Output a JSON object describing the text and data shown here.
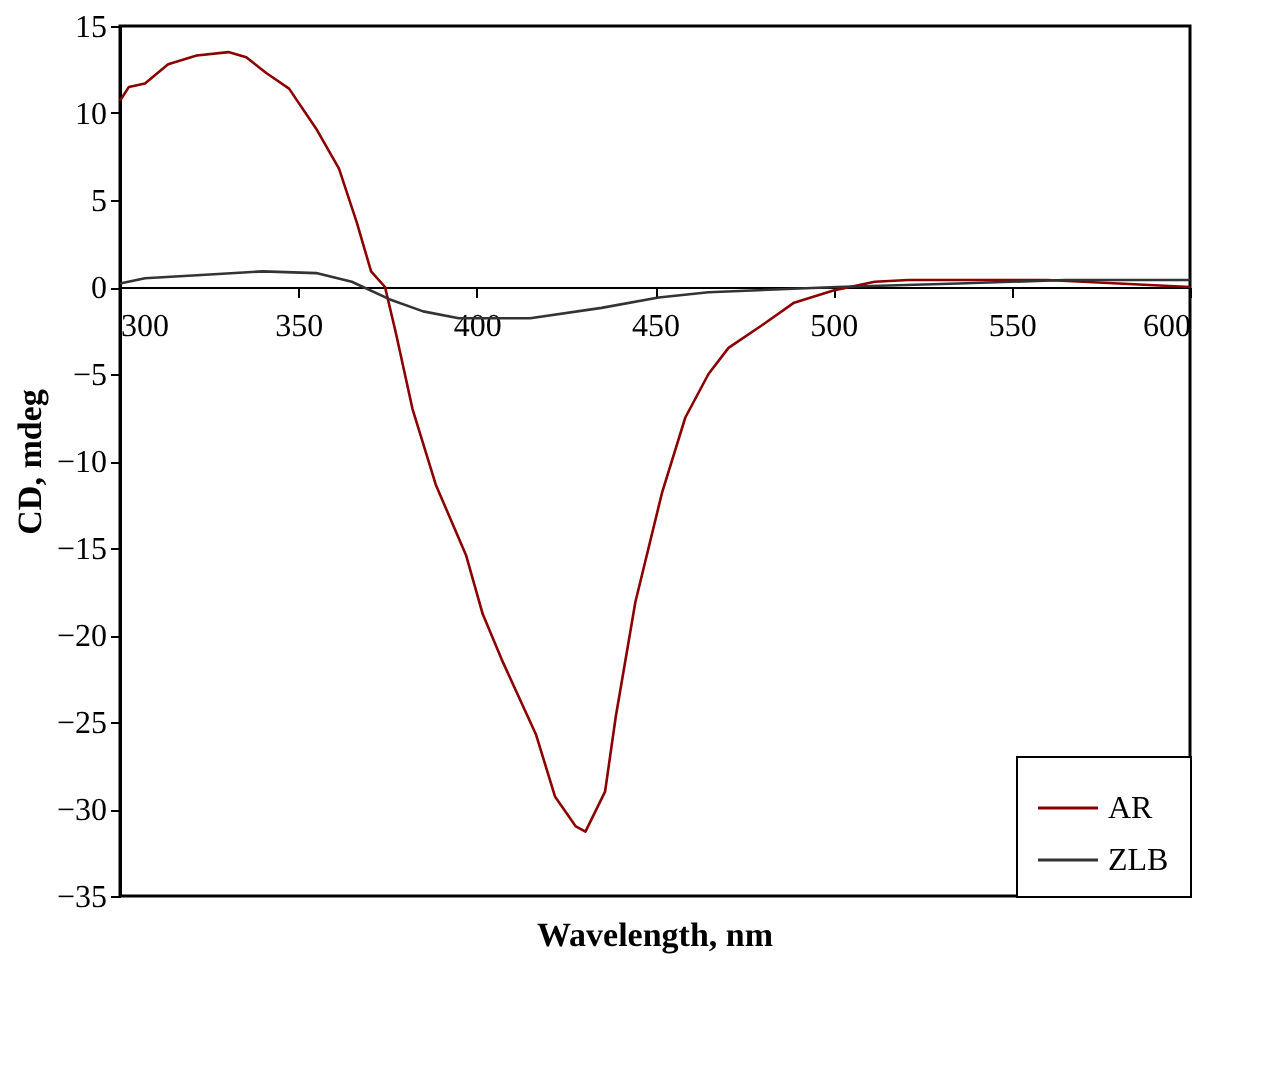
{
  "chart_data": {
    "type": "line",
    "xlabel": "Wavelength, nm",
    "ylabel": "CD, mdeg",
    "xlim": [
      300,
      600
    ],
    "xticks": [
      300,
      350,
      400,
      450,
      500,
      550,
      600
    ],
    "ylim": [
      -35,
      15
    ],
    "yticks": [
      -35,
      -30,
      -25,
      -20,
      -15,
      -10,
      -5,
      0,
      5,
      10,
      15
    ],
    "grid": false,
    "legend": "bottom right",
    "marker": "none",
    "line_style": "solid",
    "series": [
      {
        "name": "AR",
        "color": "#8b0000",
        "x": [
          300,
          302.5,
          307,
          313.5,
          321.5,
          330.4,
          335.4,
          341,
          347.4,
          355,
          361.4,
          366.4,
          370.4,
          374.3,
          377.3,
          382,
          388.6,
          397,
          401.7,
          407,
          416.6,
          422,
          427.8,
          430.5,
          436,
          439,
          444.5,
          452,
          458.5,
          465,
          470.6,
          480,
          489,
          500,
          511.6,
          521,
          540,
          560,
          580,
          600
        ],
        "values": [
          10.7,
          11.5,
          11.7,
          12.8,
          13.3,
          13.5,
          13.2,
          12.3,
          11.4,
          9.1,
          6.8,
          3.7,
          0.9,
          0,
          -2.6,
          -7,
          -11.4,
          -15.4,
          -18.8,
          -21.4,
          -25.7,
          -29.3,
          -31,
          -31.3,
          -29,
          -24.7,
          -18.1,
          -11.8,
          -7.5,
          -5,
          -3.5,
          -2.2,
          -0.9,
          -0.2,
          0.3,
          0.4,
          0.4,
          0.4,
          0.2,
          0
        ]
      },
      {
        "name": "ZLB",
        "color": "#333333",
        "x": [
          300,
          307,
          324,
          340,
          355,
          365,
          375.5,
          385,
          395,
          415,
          435,
          451,
          465,
          501,
          535,
          565,
          600
        ],
        "values": [
          0.2,
          0.5,
          0.7,
          0.9,
          0.8,
          0.3,
          -0.7,
          -1.4,
          -1.8,
          -1.8,
          -1.2,
          -0.6,
          -0.3,
          0,
          0.2,
          0.4,
          0.4
        ]
      }
    ]
  }
}
